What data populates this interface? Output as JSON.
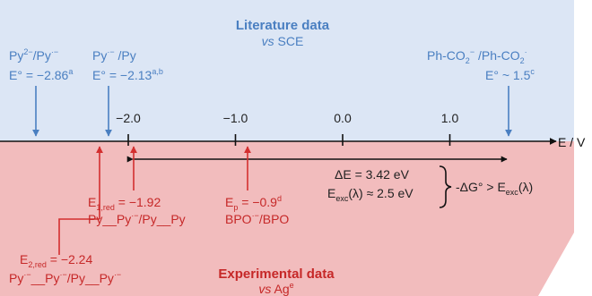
{
  "colors": {
    "literature_bg": "#dce6f5",
    "experimental_bg": "#f2bcbd",
    "blue_arrow": "#4a7fc1",
    "red_arrow": "#d32f2f",
    "text_dark": "#333333",
    "text_red": "#c62828",
    "text_blue": "#4a7fc1",
    "axis": "#111111"
  },
  "literature": {
    "title": "Literature data",
    "subtitle": "vs SCE",
    "py2_label": "Py2−/Py·−",
    "py2_value": "E° = −2.86a",
    "py_label": "Py·−/Py",
    "py_value": "E° = −2.13a,b",
    "phco2_label": "Ph-CO2−/Ph-CO2·",
    "phco2_value": "E° ~ 1.5c"
  },
  "axis": {
    "label": "E / V",
    "ticks": [
      {
        "value": -2.0,
        "label": "−2.0"
      },
      {
        "value": -1.0,
        "label": "−1.0"
      },
      {
        "value": 0.0,
        "label": "0.0"
      },
      {
        "value": 1.0,
        "label": "1.0"
      }
    ]
  },
  "energy": {
    "delta_e": "ΔE = 3.42 eV",
    "e_exc": "Eexc(λ) ≈ 2.5 eV",
    "condition": "-ΔG° > Eexc(λ)"
  },
  "experimental": {
    "title": "Experimental data",
    "subtitle": "vs Age",
    "e1red": "E1,red = −1.92",
    "e1red_species": "Py__Py·−/Py__Py",
    "ep": "Ep = −0.9d",
    "ep_species": "BPO·−/BPO",
    "e2red": "E2,red = −2.24",
    "e2red_species": "Py·−__Py·−/Py__Py·−"
  }
}
